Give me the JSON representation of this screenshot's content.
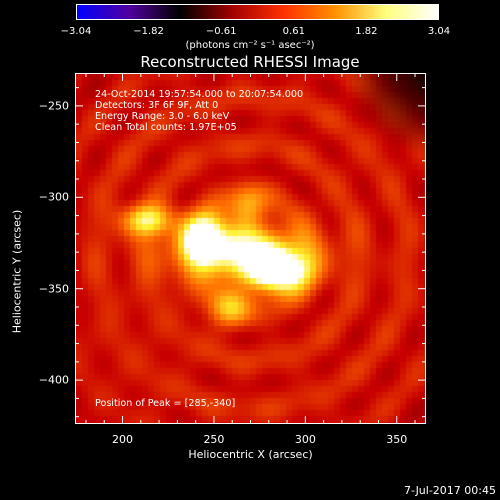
{
  "colorbar": {
    "ticks": [
      "−3.04",
      "−1.82",
      "−0.61",
      "0.61",
      "1.82",
      "3.04"
    ],
    "units": "(photons cm⁻² s⁻¹ asec⁻²)",
    "stops": [
      "#0000ff",
      "#5000a0",
      "#000000",
      "#a00000",
      "#ff3000",
      "#ff9000",
      "#ffff80",
      "#ffffff"
    ]
  },
  "annotations": {
    "line1": "24-Oct-2014 19:57:54.000 to 20:07:54.000",
    "line2": "Detectors: 3F 6F 9F, Att 0",
    "line3": "Energy Range: 3.0 - 6.0 keV",
    "line4": "Clean     Total counts: 1.97E+05",
    "peak": "Position of Peak = [285,-340]"
  },
  "footer": {
    "date": "7-Jul-2017 00:45"
  },
  "chart_data": {
    "type": "heatmap",
    "title": "Reconstructed RHESSI Image",
    "xlabel": "Heliocentric X (arcsec)",
    "ylabel": "Heliocentric Y (arcsec)",
    "xlim": [
      174,
      366
    ],
    "ylim": [
      -424,
      -232
    ],
    "xticks": [
      200,
      250,
      300,
      350
    ],
    "yticks": [
      -250,
      -300,
      -350,
      -400
    ],
    "xtick_labels": [
      "200",
      "250",
      "300",
      "350"
    ],
    "ytick_labels": [
      "−250",
      "−300",
      "−350",
      "−400"
    ],
    "sources": [
      {
        "x": 285,
        "y": -340,
        "amplitude": 3.04,
        "sigma_x": 11,
        "sigma_y": 8
      },
      {
        "x": 245,
        "y": -322,
        "amplitude": 2.7,
        "sigma_x": 8,
        "sigma_y": 9
      },
      {
        "x": 213,
        "y": -312,
        "amplitude": 1.9,
        "sigma_x": 10,
        "sigma_y": 6
      },
      {
        "x": 265,
        "y": -330,
        "amplitude": 2.0,
        "sigma_x": 28,
        "sigma_y": 12
      },
      {
        "x": 258,
        "y": -360,
        "amplitude": 1.3,
        "sigma_x": 8,
        "sigma_y": 8
      },
      {
        "x": 268,
        "y": -305,
        "amplitude": 1.2,
        "sigma_x": 7,
        "sigma_y": 8
      }
    ],
    "background": 0.9,
    "peak_position": [
      285,
      -340
    ]
  }
}
